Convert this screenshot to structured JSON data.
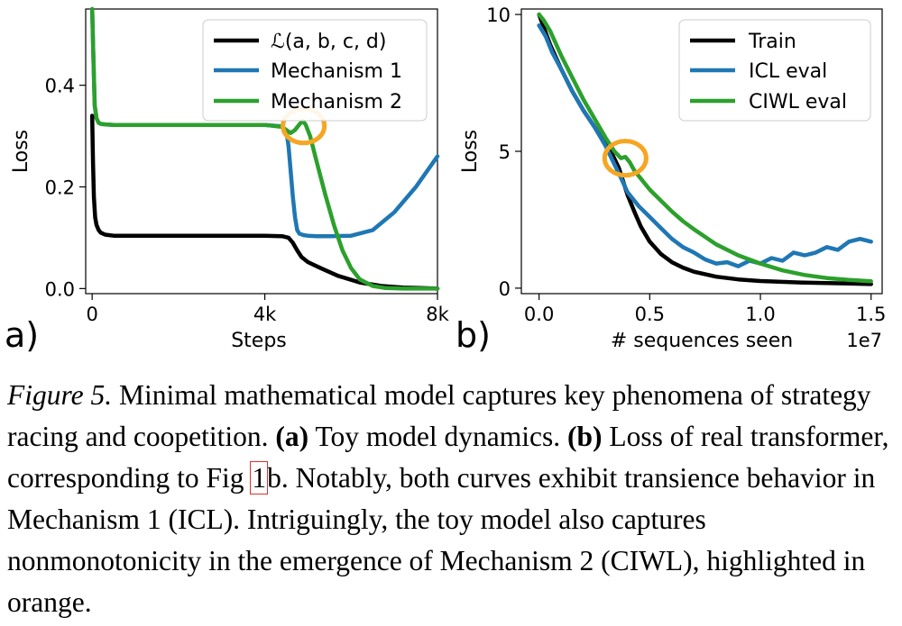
{
  "chart_data": [
    {
      "type": "line",
      "panel_label": "a)",
      "xlabel": "Steps",
      "ylabel": "Loss",
      "xlim": [
        -150,
        8000
      ],
      "ylim": [
        -0.01,
        0.55
      ],
      "x_ticks": [
        0,
        4000,
        8000
      ],
      "x_tick_labels": [
        "0",
        "4k",
        "8k"
      ],
      "y_ticks": [
        0.0,
        0.2,
        0.4
      ],
      "y_tick_labels": [
        "0.0",
        "0.2",
        "0.4"
      ],
      "legend": [
        "ℒ(a, b, c, d)",
        "Mechanism 1",
        "Mechanism 2"
      ],
      "legend_location": "upper right",
      "highlight": {
        "x": 4900,
        "y": 0.32,
        "color": "#f5a623"
      },
      "series": [
        {
          "name": "ℒ(a, b, c, d)",
          "color": "#000000",
          "x": [
            0,
            20,
            40,
            70,
            100,
            150,
            200,
            300,
            400,
            500,
            700,
            1000,
            2000,
            3000,
            4000,
            4400,
            4550,
            4650,
            4750,
            4850,
            5000,
            5300,
            5700,
            6200,
            6700,
            7200,
            7600,
            8000
          ],
          "y": [
            0.34,
            0.25,
            0.18,
            0.14,
            0.125,
            0.115,
            0.11,
            0.106,
            0.105,
            0.104,
            0.104,
            0.104,
            0.104,
            0.104,
            0.104,
            0.103,
            0.1,
            0.09,
            0.075,
            0.062,
            0.052,
            0.04,
            0.025,
            0.012,
            0.005,
            0.002,
            0.001,
            0.0
          ]
        },
        {
          "name": "Mechanism 1",
          "color": "#1f77b4",
          "x": [
            0,
            30,
            60,
            100,
            150,
            200,
            300,
            500,
            1000,
            2000,
            3000,
            4000,
            4400,
            4500,
            4550,
            4600,
            4650,
            4700,
            4750,
            4800,
            4900,
            5000,
            5200,
            5500,
            6000,
            6500,
            7000,
            7500,
            8000
          ],
          "y": [
            0.6,
            0.45,
            0.36,
            0.335,
            0.326,
            0.324,
            0.323,
            0.322,
            0.322,
            0.322,
            0.322,
            0.322,
            0.319,
            0.31,
            0.28,
            0.23,
            0.18,
            0.14,
            0.115,
            0.108,
            0.105,
            0.104,
            0.103,
            0.103,
            0.104,
            0.115,
            0.15,
            0.2,
            0.26
          ]
        },
        {
          "name": "Mechanism 2",
          "color": "#2ca02c",
          "x": [
            0,
            30,
            60,
            100,
            150,
            200,
            300,
            500,
            1000,
            2000,
            3000,
            4000,
            4400,
            4500,
            4600,
            4700,
            4800,
            4880,
            4950,
            5050,
            5200,
            5400,
            5600,
            5800,
            6000,
            6200,
            6500,
            6800,
            7200,
            7600,
            8000
          ],
          "y": [
            0.6,
            0.45,
            0.36,
            0.335,
            0.326,
            0.324,
            0.323,
            0.322,
            0.322,
            0.322,
            0.322,
            0.322,
            0.318,
            0.312,
            0.306,
            0.312,
            0.323,
            0.33,
            0.322,
            0.3,
            0.25,
            0.185,
            0.125,
            0.075,
            0.04,
            0.018,
            0.005,
            0.001,
            0.0,
            0.0,
            0.0
          ]
        }
      ]
    },
    {
      "type": "line",
      "panel_label": "b)",
      "xlabel": "# sequences seen",
      "x_offset_label": "1e7",
      "ylabel": "Loss",
      "xlim": [
        -0.08,
        1.55
      ],
      "ylim": [
        -0.2,
        10.2
      ],
      "x_ticks": [
        0.0,
        0.5,
        1.0,
        1.5
      ],
      "x_tick_labels": [
        "0.0",
        "0.5",
        "1.0",
        "1.5"
      ],
      "y_ticks": [
        0,
        5,
        10
      ],
      "y_tick_labels": [
        "0",
        "5",
        "10"
      ],
      "legend": [
        "Train",
        "ICL eval",
        "CIWL eval"
      ],
      "legend_location": "upper right",
      "highlight": {
        "x": 0.39,
        "y": 4.75,
        "color": "#f5a623"
      },
      "series": [
        {
          "name": "Train",
          "color": "#000000",
          "x": [
            0.0,
            0.05,
            0.1,
            0.15,
            0.2,
            0.25,
            0.3,
            0.33,
            0.36,
            0.38,
            0.4,
            0.43,
            0.46,
            0.5,
            0.55,
            0.6,
            0.65,
            0.7,
            0.8,
            0.9,
            1.0,
            1.2,
            1.4,
            1.5
          ],
          "y": [
            10.0,
            8.9,
            8.0,
            7.2,
            6.5,
            5.9,
            5.25,
            4.9,
            4.4,
            3.9,
            3.4,
            2.8,
            2.25,
            1.7,
            1.25,
            0.95,
            0.75,
            0.6,
            0.42,
            0.32,
            0.26,
            0.2,
            0.17,
            0.15
          ]
        },
        {
          "name": "ICL eval",
          "color": "#1f77b4",
          "x": [
            0.0,
            0.03,
            0.06,
            0.1,
            0.15,
            0.2,
            0.25,
            0.3,
            0.33,
            0.36,
            0.4,
            0.45,
            0.5,
            0.55,
            0.6,
            0.65,
            0.7,
            0.75,
            0.8,
            0.85,
            0.9,
            0.95,
            1.0,
            1.05,
            1.1,
            1.15,
            1.2,
            1.25,
            1.3,
            1.35,
            1.4,
            1.45,
            1.5
          ],
          "y": [
            9.6,
            9.2,
            8.6,
            8.0,
            7.2,
            6.5,
            5.9,
            5.2,
            4.7,
            4.2,
            3.5,
            3.0,
            2.6,
            2.2,
            1.8,
            1.5,
            1.3,
            1.05,
            0.9,
            0.95,
            0.8,
            1.0,
            0.9,
            1.1,
            1.0,
            1.3,
            1.2,
            1.3,
            1.5,
            1.4,
            1.7,
            1.8,
            1.7
          ]
        },
        {
          "name": "CIWL eval",
          "color": "#2ca02c",
          "x": [
            0.0,
            0.02,
            0.05,
            0.1,
            0.15,
            0.2,
            0.25,
            0.3,
            0.34,
            0.37,
            0.39,
            0.41,
            0.43,
            0.47,
            0.5,
            0.55,
            0.6,
            0.65,
            0.7,
            0.8,
            0.9,
            1.0,
            1.1,
            1.2,
            1.3,
            1.4,
            1.5
          ],
          "y": [
            10.0,
            9.8,
            9.4,
            8.5,
            7.7,
            6.9,
            6.2,
            5.5,
            5.0,
            4.75,
            4.8,
            4.6,
            4.3,
            3.9,
            3.6,
            3.2,
            2.8,
            2.45,
            2.15,
            1.6,
            1.2,
            0.9,
            0.65,
            0.48,
            0.37,
            0.3,
            0.25
          ]
        }
      ]
    }
  ],
  "caption": {
    "label": "Figure 5.",
    "text1": " Minimal mathematical model captures key phenomena of strategy racing and coopetition. ",
    "part_a_label": "(a)",
    "text2": " Toy model dynamics. ",
    "part_b_label": "(b)",
    "text3": " Loss of real transformer, corresponding to Fig ",
    "fig_ref": "1",
    "text4": "b. Notably, both curves exhibit transience behavior in Mechanism 1 (ICL). Intriguingly, the toy model also captures nonmonotonicity in the emergence of Mechanism 2 (CIWL), highlighted in orange."
  }
}
